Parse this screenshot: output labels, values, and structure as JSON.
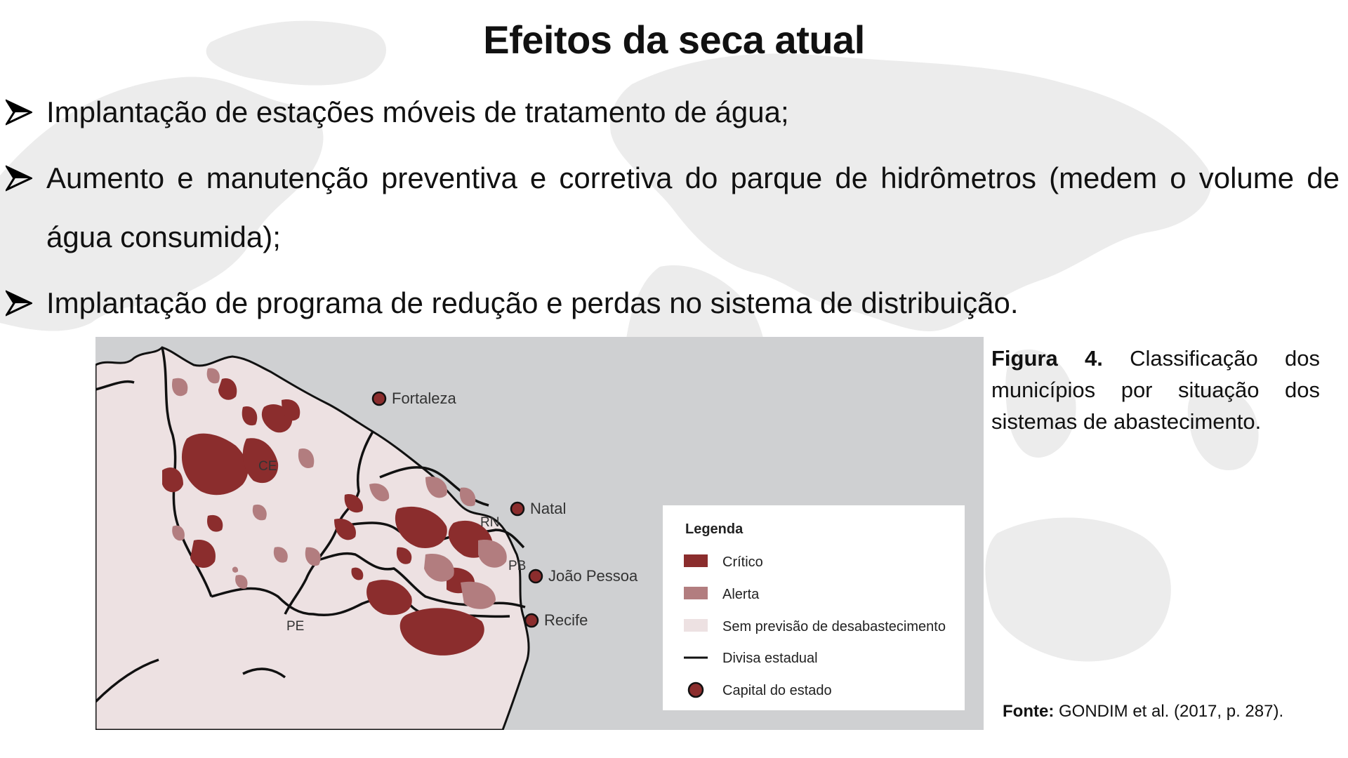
{
  "title": "Efeitos da seca atual",
  "bullets": [
    "Implantação de estações móveis de tratamento de água;",
    "Aumento e manutenção preventiva e corretiva do parque de hidrômetros (medem o volume de água consumida);",
    "Implantação de programa de redução e perdas no sistema de distribuição."
  ],
  "map": {
    "cities": [
      "Fortaleza",
      "Natal",
      "João Pessoa",
      "Recife"
    ],
    "states": [
      "CE",
      "RN",
      "PB",
      "PE"
    ],
    "legend": {
      "title": "Legenda",
      "items": [
        {
          "label": "Crítico",
          "color": "#8b2d2d"
        },
        {
          "label": "Alerta",
          "color": "#b27d7f"
        },
        {
          "label": "Sem previsão de desabastecimento",
          "color": "#ede1e2"
        },
        {
          "label": "Divisa estadual",
          "color": "#111111"
        },
        {
          "label": "Capital do estado",
          "color": "#8b2d2d"
        }
      ]
    },
    "colors": {
      "ocean": "#cfd0d2",
      "land": "#ede1e2",
      "critico": "#8b2d2d",
      "alerta": "#b27d7f"
    }
  },
  "caption": {
    "label": "Figura 4.",
    "text": "Classificação dos municípios por situação dos sistemas de abastecimento."
  },
  "source": {
    "label": "Fonte:",
    "text": "GONDIM et al. (2017, p. 287)."
  }
}
